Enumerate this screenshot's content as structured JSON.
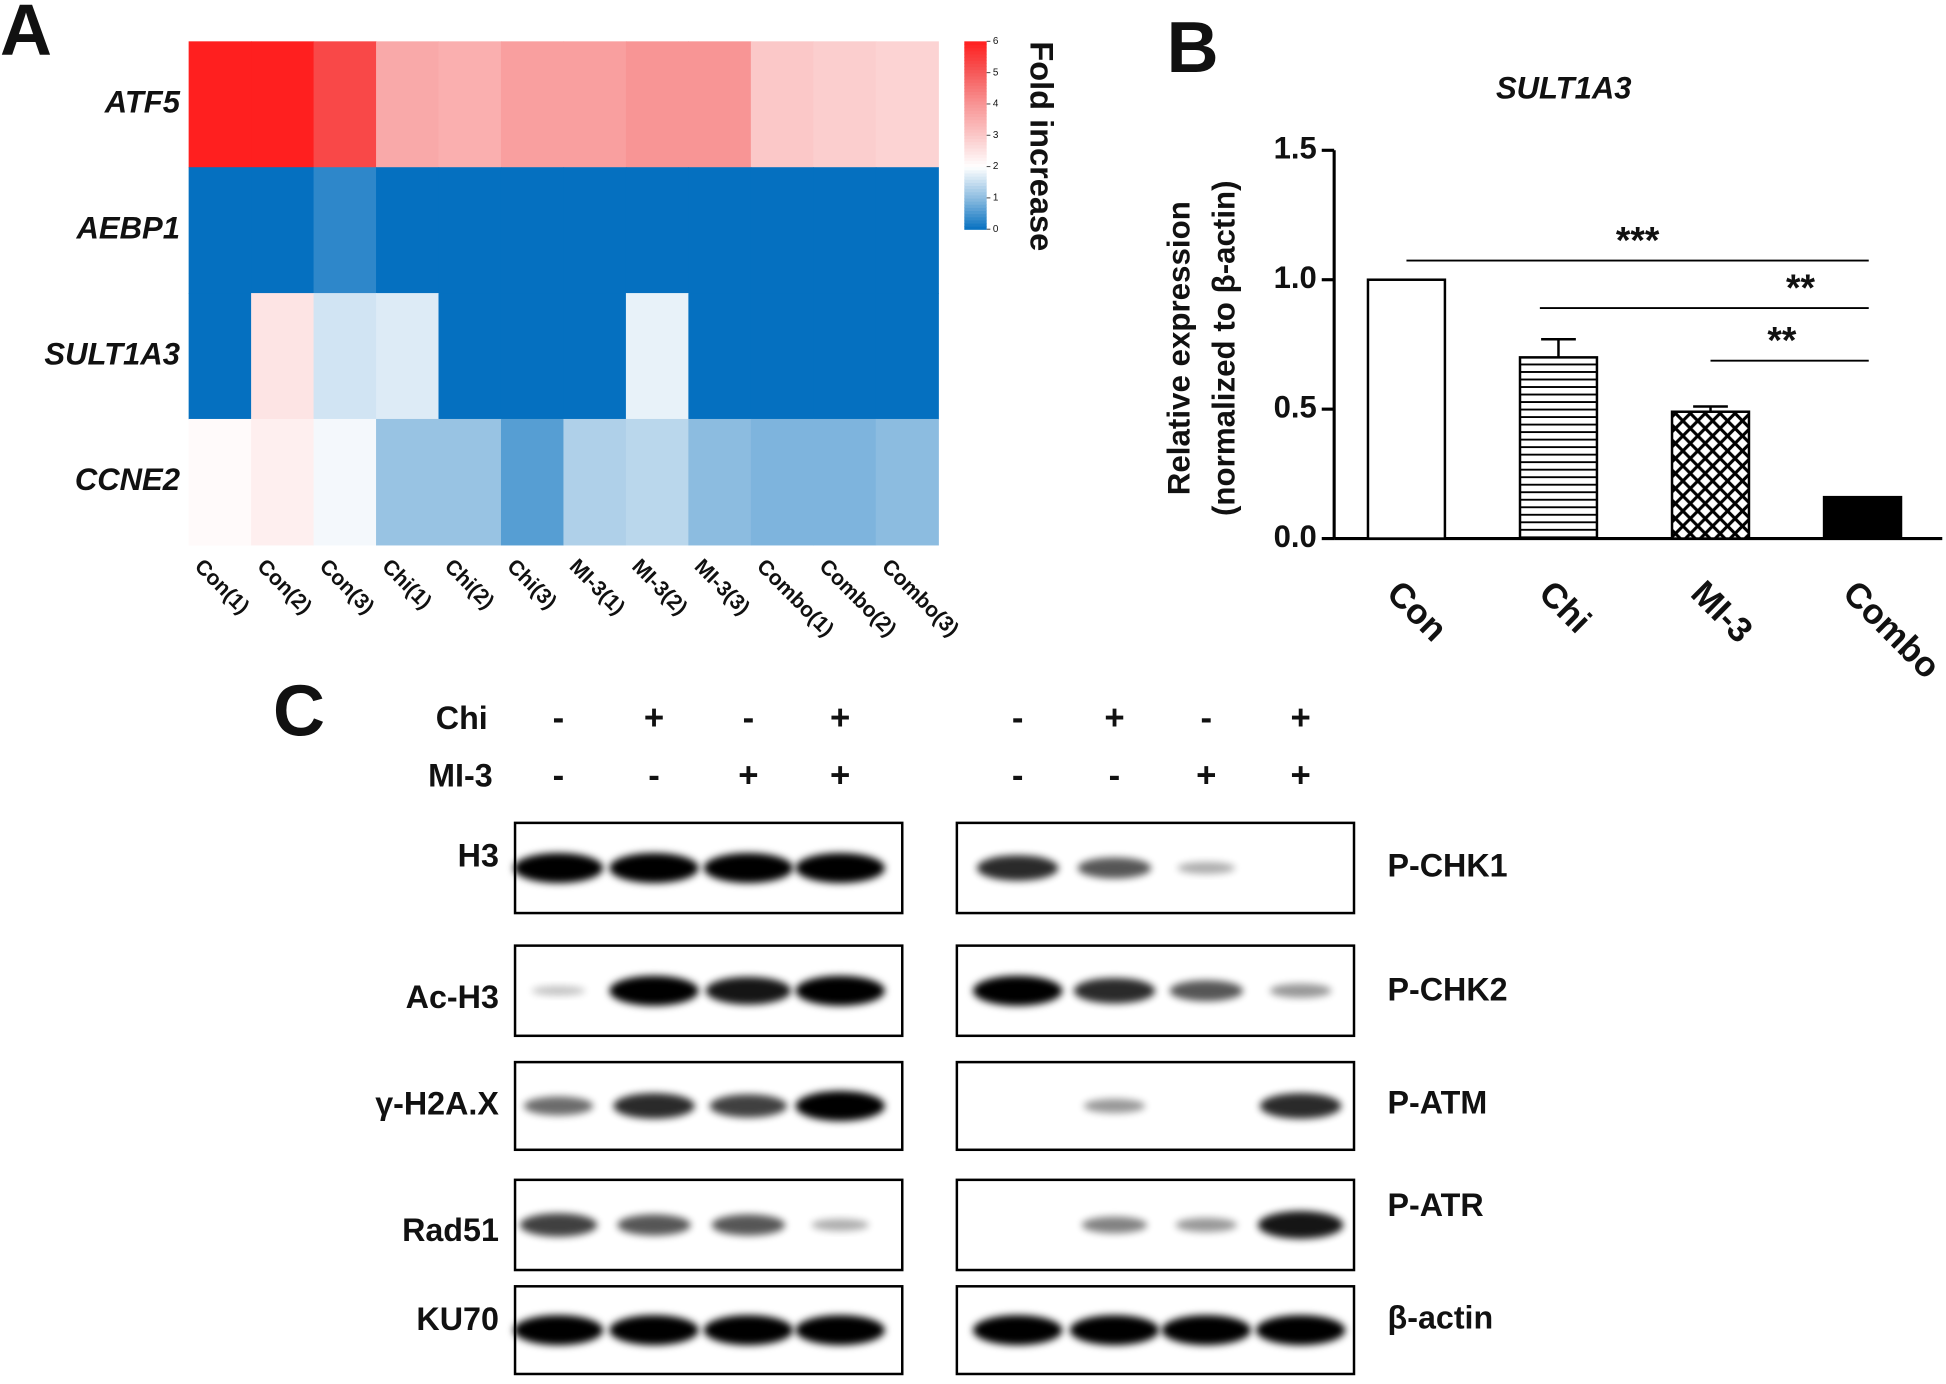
{
  "chart_data": [
    {
      "type": "heatmap",
      "panel_label": "A",
      "x": [
        "Con(1)",
        "Con(2)",
        "Con(3)",
        "Chi(1)",
        "Chi(2)",
        "Chi(3)",
        "MI-3(1)",
        "MI-3(2)",
        "MI-3(3)",
        "Combo(1)",
        "Combo(2)",
        "Combo(3)"
      ],
      "y": [
        "ATF5",
        "AEBP1",
        "SULT1A3",
        "CCNE2"
      ],
      "values": [
        [
          6,
          6,
          5.3,
          3.6,
          3.5,
          3.8,
          3.8,
          4.0,
          4.0,
          3.0,
          2.9,
          2.8
        ],
        [
          0,
          0,
          0.3,
          0,
          0,
          0,
          0,
          0,
          0,
          0,
          0,
          0
        ],
        [
          0,
          2.5,
          1.6,
          1.7,
          0,
          0,
          0,
          1.8,
          0,
          0,
          0,
          0
        ],
        [
          2.1,
          2.3,
          1.9,
          1.1,
          1.1,
          0.6,
          1.3,
          1.4,
          1.0,
          0.9,
          0.9,
          1.0
        ]
      ],
      "zlim": [
        0,
        6
      ],
      "zticks": [
        0,
        1,
        2,
        3,
        4,
        5,
        6
      ],
      "colors": [
        "#0570c0",
        "#8cbce0",
        "#ffffff",
        "#fbc8c8",
        "#f89595",
        "#f65a5a",
        "#ff1f1f"
      ],
      "colorbar_label": "Fold increase"
    },
    {
      "type": "bar",
      "panel_label": "B",
      "title": "SULT1A3",
      "y_label": [
        "Relative expression",
        "(normalized to β-actin)"
      ],
      "categories": [
        "Con",
        "Chi",
        "MI-3",
        "Combo"
      ],
      "values": [
        1.0,
        0.7,
        0.49,
        0.16
      ],
      "errors": [
        0,
        0.07,
        0.02,
        0
      ],
      "patterns": [
        "none",
        "horizontal",
        "crosshatch",
        "solid"
      ],
      "ylim": [
        0,
        1.5
      ],
      "yticks": [
        {
          "value": 0,
          "label": "0.0"
        },
        0.5,
        {
          "value": 1,
          "label": "1.0"
        },
        1.5
      ],
      "significance": [
        {
          "from": "Con",
          "to": "Combo",
          "label": "***"
        },
        {
          "from": "Chi",
          "to": "Combo",
          "label": "**"
        },
        {
          "from": "MI-3",
          "to": "Combo",
          "label": "**"
        }
      ]
    }
  ],
  "blot": {
    "panel_label": "C",
    "conditions": [
      {
        "name": "Chi",
        "values": [
          "-",
          "+",
          "-",
          "+"
        ]
      },
      {
        "name": "MI-3",
        "values": [
          "-",
          "-",
          "+",
          "+"
        ]
      }
    ],
    "left": [
      {
        "name": "H3",
        "bands": [
          1,
          1,
          1,
          1
        ]
      },
      {
        "name": "Ac-H3",
        "bands": [
          0.1,
          1,
          0.9,
          1
        ]
      },
      {
        "name": "γ-H2A.X",
        "bands": [
          0.5,
          0.8,
          0.7,
          1
        ]
      },
      {
        "name": "Rad51",
        "bands": [
          0.7,
          0.6,
          0.6,
          0.2
        ]
      },
      {
        "name": "KU70",
        "bands": [
          1,
          1,
          1,
          1
        ]
      }
    ],
    "right": [
      {
        "name": "P-CHK1",
        "bands": [
          0.8,
          0.6,
          0.2,
          0
        ]
      },
      {
        "name": "P-CHK2",
        "bands": [
          1,
          0.8,
          0.6,
          0.3
        ]
      },
      {
        "name": "P-ATM",
        "bands": [
          0,
          0.3,
          0,
          0.8
        ]
      },
      {
        "name": "P-ATR",
        "bands": [
          0,
          0.4,
          0.3,
          0.9
        ]
      },
      {
        "name": "β-actin",
        "bands": [
          1,
          1,
          1,
          1
        ]
      }
    ]
  }
}
